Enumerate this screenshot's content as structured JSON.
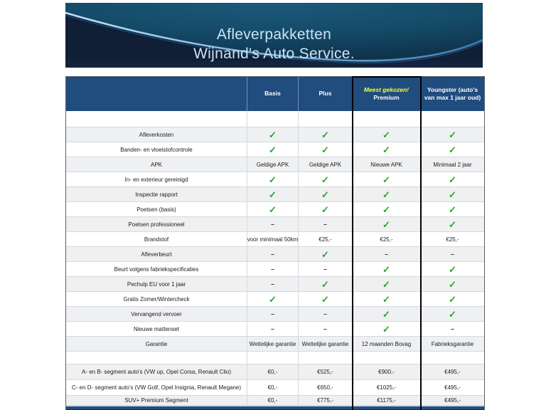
{
  "banner": {
    "title_line1": "Afleverpakketten",
    "title_line2": "Wijnand's Auto Service."
  },
  "pricing_table": {
    "columns": [
      {
        "label": ""
      },
      {
        "label": "Basis"
      },
      {
        "label": "Plus"
      },
      {
        "label": "Premium",
        "badge": "Meest gekozen!",
        "highlighted": true
      },
      {
        "label": "Youngster (auto's van max 1 jaar oud)"
      }
    ],
    "rows": [
      {
        "feature": "",
        "values": [
          "",
          "",
          "",
          ""
        ]
      },
      {
        "feature": "Afleverkosten",
        "values": [
          "check",
          "check",
          "check",
          "check"
        ]
      },
      {
        "feature": "Banden- en vloeistofcontrole",
        "values": [
          "check",
          "check",
          "check",
          "check"
        ]
      },
      {
        "feature": "APK",
        "values": [
          "Geldige APK",
          "Geldige APK",
          "Nieuwe APK",
          "Minimaal 2 jaar"
        ]
      },
      {
        "feature": "In- en exterieur gereinigd",
        "values": [
          "check",
          "check",
          "check",
          "check"
        ]
      },
      {
        "feature": "Inspectie rapport",
        "values": [
          "check",
          "check",
          "check",
          "check"
        ]
      },
      {
        "feature": "Poetsen (basis)",
        "values": [
          "check",
          "check",
          "check",
          "check"
        ]
      },
      {
        "feature": "Poetsen professioneel",
        "values": [
          "dash",
          "dash",
          "check",
          "check"
        ]
      },
      {
        "feature": "Brandstof",
        "values": [
          "voor minimaal 50km",
          "€25,-",
          "€25,-",
          "€25,-"
        ]
      },
      {
        "feature": "Afleverbeurt",
        "values": [
          "dash",
          "check",
          "dash",
          "dash"
        ]
      },
      {
        "feature": "Beurt volgens fabriekspecificaties",
        "values": [
          "dash",
          "dash",
          "check",
          "check"
        ]
      },
      {
        "feature": "Pechulp EU voor 1 jaar",
        "values": [
          "dash",
          "check",
          "check",
          "check"
        ]
      },
      {
        "feature": "Gratis Zomer/Wintercheck",
        "values": [
          "check",
          "check",
          "check",
          "check"
        ]
      },
      {
        "feature": "Vervangend vervoer",
        "values": [
          "dash",
          "dash",
          "check",
          "check"
        ]
      },
      {
        "feature": "Nieuwe mattenset",
        "values": [
          "dash",
          "dash",
          "check",
          "dash"
        ]
      },
      {
        "feature": "Garantie",
        "values": [
          "Wettelijke garantie",
          "Wettelijke garantie",
          "12 maanden Bovag",
          "Fabrieksgarantie"
        ]
      },
      {
        "feature": "",
        "values": [
          "",
          "",
          "",
          ""
        ]
      },
      {
        "feature": "A- en B- segment auto's (VW up, Opel Corsa, Renault Clio)",
        "values": [
          "€0,-",
          "€525,-",
          "€900,-",
          "€495,-"
        ]
      },
      {
        "feature": "C- en D- segment auto's (VW Golf, Opel Insignia, Renault Megane)",
        "values": [
          "€0,-",
          "€650,-",
          "€1025,-",
          "€495,-"
        ]
      },
      {
        "feature": "SUV+ Premium Segment",
        "values": [
          "€0,-",
          "€775,-",
          "€1175,-",
          "€495,-"
        ]
      }
    ]
  },
  "colors": {
    "header_bg": "#204C7E",
    "banner_dark": "#13233D",
    "banner_blue": "#175474",
    "swoosh_light_blue": "#BFE2F8",
    "badge_yellow": "#FFFF29",
    "check_green": "#28A428",
    "alt_row": "#EFF0F2",
    "bottom_bar": "#215081",
    "highlight_border": "#000000"
  },
  "icons": {
    "check": "check-icon",
    "dash": "dash-icon"
  }
}
